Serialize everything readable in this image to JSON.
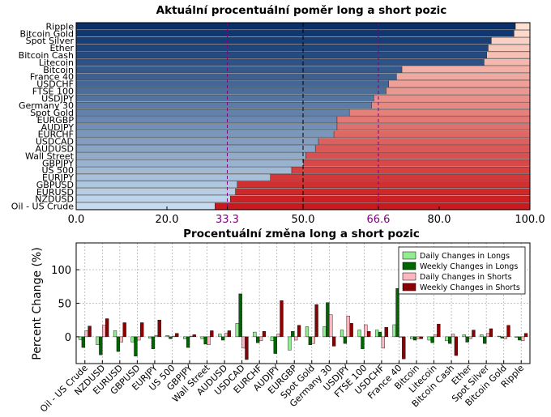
{
  "chart_data": [
    {
      "type": "bar",
      "orientation": "horizontal-stacked",
      "title": "Aktuální procentuální poměr long a short pozic",
      "categories": [
        "Ripple",
        "Bitcoin Gold",
        "Spot Silver",
        "Ether",
        "Bitcoin Cash",
        "Litecoin",
        "Bitcoin",
        "France 40",
        "USDCHF",
        "FTSE 100",
        "USDJPY",
        "Germany 30",
        "Spot Gold",
        "EURGBP",
        "AUDJPY",
        "EURCHF",
        "USDCAD",
        "AUDUSD",
        "Wall Street",
        "GBPJPY",
        "US 500",
        "EURJPY",
        "GBPUSD",
        "EURUSD",
        "NZDUSD",
        "Oil - US Crude"
      ],
      "series": [
        {
          "values": [
            96.8,
            96.5,
            91.5,
            90.8,
            90.5,
            89.9,
            71.8,
            70.6,
            68.9,
            68.3,
            65.6,
            65.1,
            60.2,
            57.5,
            57.5,
            56.8,
            53.4,
            52.7,
            50.6,
            50.1,
            47.5,
            42.8,
            35.5,
            35.1,
            34.0,
            30.6
          ]
        }
      ],
      "xlim": [
        0,
        100
      ],
      "xticks": [
        "0.0",
        "20.0",
        "33.3",
        "50.0",
        "66.6",
        "80.0",
        "100.0"
      ],
      "reference_lines": [
        "33.3",
        "50.0",
        "66.6"
      ],
      "colors": {
        "long_dark": "#08306b",
        "long_light": "#c6dbef",
        "short_dark": "#cb181d",
        "short_light": "#fee0d2",
        "reference": "#800080"
      }
    },
    {
      "type": "bar",
      "title": "Procentuální změna long a short pozic",
      "ylabel": "Percent Change (%)",
      "categories": [
        "Oil - US Crude",
        "NZDUSD",
        "EURUSD",
        "GBPUSD",
        "EURJPY",
        "US 500",
        "GBPJPY",
        "Wall Street",
        "AUDUSD",
        "USDCAD",
        "EURCHF",
        "AUDJPY",
        "EURGBP",
        "Spot Gold",
        "Germany 30",
        "USDJPY",
        "FTSE 100",
        "USDCHF",
        "France 40",
        "Bitcoin",
        "Litecoin",
        "Bitcoin Cash",
        "Ether",
        "Spot Silver",
        "Bitcoin Gold",
        "Ripple"
      ],
      "series": [
        {
          "name": "Daily Changes in Longs",
          "values": [
            -4,
            -12,
            9,
            -8,
            -2,
            2,
            -3,
            -3,
            4,
            20,
            7,
            -6,
            -20,
            15,
            15,
            10,
            10,
            10,
            18,
            -3,
            -5,
            -6,
            3,
            3,
            1,
            -1
          ]
        },
        {
          "name": "Weekly Changes in Longs",
          "values": [
            -16,
            -27,
            -22,
            -29,
            -18,
            -3,
            -16,
            -11,
            -5,
            64,
            -9,
            -25,
            8,
            -12,
            51,
            -10,
            -18,
            7,
            72,
            -5,
            -9,
            -10,
            -8,
            -10,
            -2,
            -5
          ]
        },
        {
          "name": "Daily Changes in Shorts",
          "values": [
            9,
            17,
            -8,
            -5,
            2,
            1,
            1,
            -12,
            5,
            -17,
            -6,
            4,
            -5,
            -10,
            33,
            31,
            18,
            -17,
            0,
            -3,
            3,
            4,
            -3,
            5,
            -3,
            -6
          ]
        },
        {
          "name": "Weekly Changes in Shorts",
          "values": [
            16,
            27,
            21,
            21,
            25,
            5,
            3,
            9,
            9,
            -34,
            8,
            54,
            17,
            48,
            -14,
            20,
            8,
            14,
            -33,
            -3,
            19,
            -28,
            10,
            12,
            17,
            5
          ]
        }
      ],
      "ylim": [
        -40,
        140
      ],
      "yticks": [
        "0",
        "50",
        "100"
      ],
      "grid": true,
      "legend_position": "top-right",
      "colors": {
        "daily_longs": "#90ee90",
        "weekly_longs": "#006400",
        "daily_shorts": "#ffb6c1",
        "weekly_shorts": "#8b0000"
      }
    }
  ]
}
